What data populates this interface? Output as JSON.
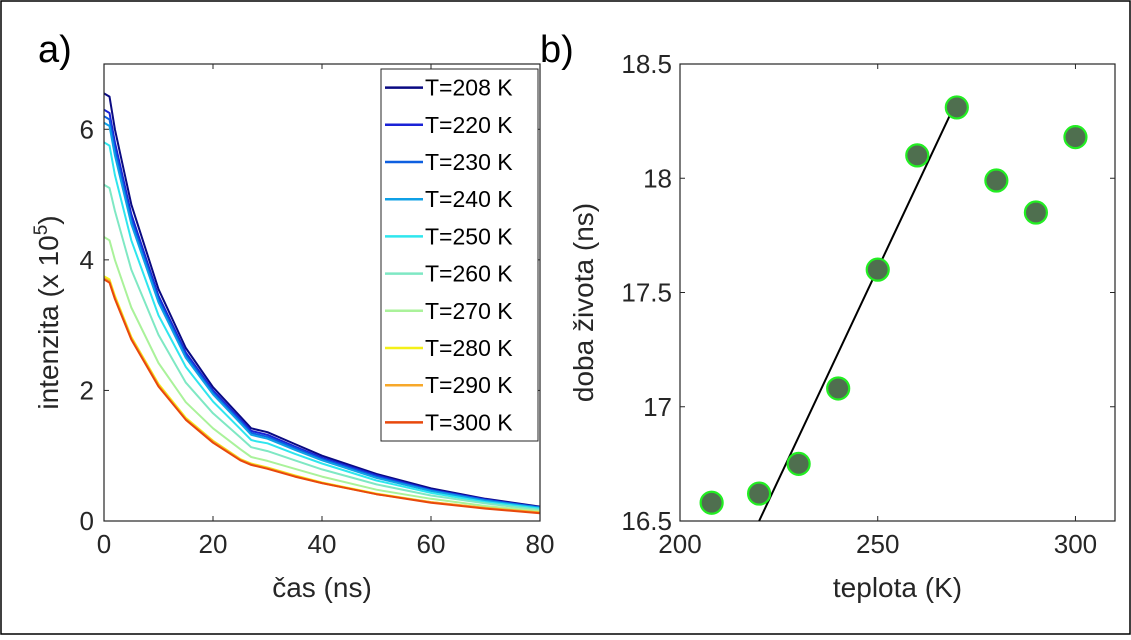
{
  "panels": {
    "a_label": "a)",
    "b_label": "b)"
  },
  "chart_data": [
    {
      "type": "line",
      "xlabel": "čas (ns)",
      "ylabel": "intenzita (x 10",
      "ylabel_exp": "5",
      "ylabel_end": ")",
      "xlim": [
        0,
        80
      ],
      "ylim": [
        0,
        7
      ],
      "xticks": [
        0,
        20,
        40,
        60,
        80
      ],
      "yticks": [
        0,
        2,
        4,
        6
      ],
      "legend_position": "top-right",
      "grid": false,
      "x": [
        0,
        1,
        2,
        5,
        10,
        15,
        20,
        25,
        27,
        28,
        30,
        35,
        40,
        50,
        60,
        70,
        80
      ],
      "series": [
        {
          "name": "T=208 K",
          "color": "#0a0a82",
          "values": [
            6.55,
            6.5,
            6.0,
            4.85,
            3.55,
            2.65,
            2.05,
            1.6,
            1.42,
            1.4,
            1.36,
            1.18,
            1.0,
            0.72,
            0.5,
            0.34,
            0.22
          ]
        },
        {
          "name": "T=220 K",
          "color": "#1a22d6",
          "values": [
            6.3,
            6.25,
            5.8,
            4.7,
            3.45,
            2.58,
            2.0,
            1.56,
            1.38,
            1.36,
            1.32,
            1.14,
            0.97,
            0.7,
            0.48,
            0.33,
            0.21
          ]
        },
        {
          "name": "T=230 K",
          "color": "#0d5fe0",
          "values": [
            6.2,
            6.15,
            5.7,
            4.62,
            3.4,
            2.54,
            1.97,
            1.53,
            1.35,
            1.33,
            1.29,
            1.12,
            0.95,
            0.68,
            0.47,
            0.32,
            0.21
          ]
        },
        {
          "name": "T=240 K",
          "color": "#0fa0e6",
          "values": [
            6.1,
            6.05,
            5.6,
            4.55,
            3.35,
            2.5,
            1.94,
            1.5,
            1.32,
            1.3,
            1.26,
            1.09,
            0.93,
            0.66,
            0.46,
            0.31,
            0.2
          ]
        },
        {
          "name": "T=250 K",
          "color": "#2fe6ee",
          "values": [
            5.8,
            5.75,
            5.3,
            4.3,
            3.15,
            2.36,
            1.83,
            1.41,
            1.24,
            1.22,
            1.19,
            1.03,
            0.88,
            0.62,
            0.43,
            0.29,
            0.19
          ]
        },
        {
          "name": "T=260 K",
          "color": "#7fe8c4",
          "values": [
            5.15,
            5.1,
            4.75,
            3.85,
            2.85,
            2.12,
            1.65,
            1.28,
            1.13,
            1.11,
            1.07,
            0.93,
            0.79,
            0.56,
            0.39,
            0.27,
            0.17
          ]
        },
        {
          "name": "T=270 K",
          "color": "#aaf29a",
          "values": [
            4.35,
            4.3,
            4.0,
            3.27,
            2.42,
            1.82,
            1.42,
            1.1,
            0.98,
            0.96,
            0.92,
            0.8,
            0.68,
            0.48,
            0.34,
            0.23,
            0.15
          ]
        },
        {
          "name": "T=280 K",
          "color": "#f4f018",
          "values": [
            3.75,
            3.7,
            3.45,
            2.82,
            2.1,
            1.58,
            1.23,
            0.95,
            0.88,
            0.86,
            0.82,
            0.7,
            0.59,
            0.42,
            0.29,
            0.2,
            0.13
          ]
        },
        {
          "name": "T=290 K",
          "color": "#f7a82a",
          "values": [
            3.72,
            3.67,
            3.42,
            2.8,
            2.08,
            1.56,
            1.22,
            0.94,
            0.87,
            0.85,
            0.81,
            0.69,
            0.58,
            0.41,
            0.29,
            0.2,
            0.13
          ]
        },
        {
          "name": "T=300 K",
          "color": "#e8480c",
          "values": [
            3.7,
            3.65,
            3.4,
            2.78,
            2.06,
            1.55,
            1.2,
            0.93,
            0.86,
            0.84,
            0.8,
            0.68,
            0.58,
            0.41,
            0.28,
            0.19,
            0.12
          ]
        }
      ]
    },
    {
      "type": "scatter",
      "xlabel": "teplota (K)",
      "ylabel": "doba života (ns)",
      "xlim": [
        200,
        310
      ],
      "ylim": [
        16.5,
        18.5
      ],
      "xticks": [
        200,
        250,
        300
      ],
      "yticks": [
        16.5,
        17,
        17.5,
        18,
        18.5
      ],
      "grid": false,
      "marker_fill": "#4f6f4f",
      "marker_edge": "#22ee22",
      "x": [
        208,
        220,
        230,
        240,
        250,
        260,
        270,
        280,
        290,
        300
      ],
      "y": [
        16.58,
        16.62,
        16.75,
        17.08,
        17.6,
        18.1,
        18.31,
        17.99,
        17.85,
        18.18
      ],
      "fit_line": {
        "x": [
          220,
          270
        ],
        "y": [
          16.5,
          18.34
        ],
        "color": "#000000"
      }
    }
  ]
}
